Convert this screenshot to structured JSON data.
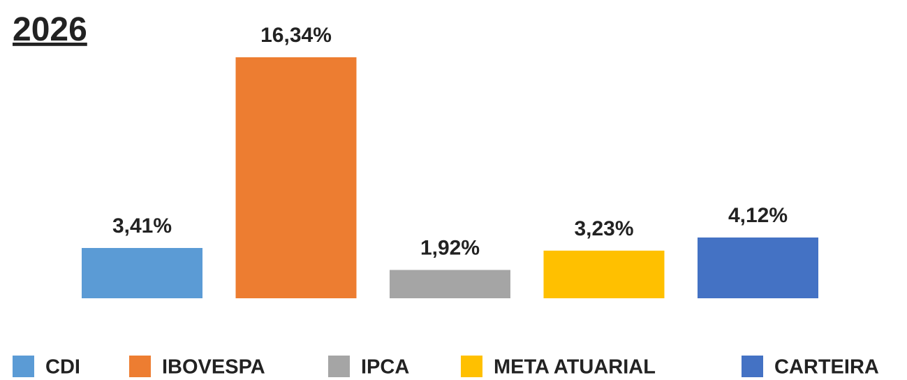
{
  "chart_data": {
    "type": "bar",
    "title": "2026",
    "series": [
      {
        "name": "CDI",
        "color": "#5b9bd5",
        "values": [
          3.41
        ],
        "value_labels": [
          "3,41%"
        ]
      },
      {
        "name": "IBOVESPA",
        "color": "#ed7d31",
        "values": [
          16.34
        ],
        "value_labels": [
          "16,34%"
        ]
      },
      {
        "name": "IPCA",
        "color": "#a5a5a5",
        "values": [
          1.92
        ],
        "value_labels": [
          "1,92%"
        ]
      },
      {
        "name": "META ATUARIAL",
        "color": "#ffc000",
        "values": [
          3.23
        ],
        "value_labels": [
          "3,23%"
        ]
      },
      {
        "name": "CARTEIRA",
        "color": "#4472c4",
        "values": [
          4.12
        ],
        "value_labels": [
          "4,12%"
        ]
      }
    ],
    "legend": "bottom"
  }
}
